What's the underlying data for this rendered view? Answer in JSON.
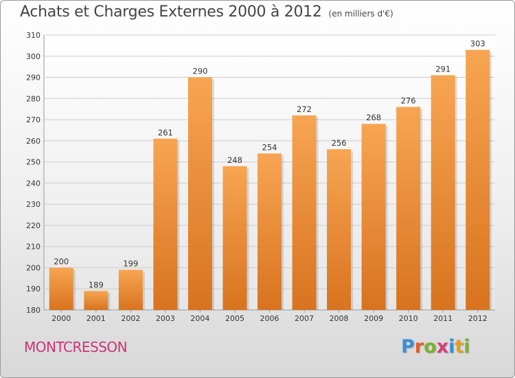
{
  "chart_data": {
    "type": "bar",
    "title": "Achats et Charges Externes 2000 à 2012",
    "subtitle": "(en milliers d'€)",
    "categories": [
      "2000",
      "2001",
      "2002",
      "2003",
      "2004",
      "2005",
      "2006",
      "2007",
      "2008",
      "2009",
      "2010",
      "2011",
      "2012"
    ],
    "values": [
      200,
      189,
      199,
      261,
      290,
      248,
      254,
      272,
      256,
      268,
      276,
      291,
      303
    ],
    "ylim": [
      180,
      310
    ],
    "yticks": [
      180,
      190,
      200,
      210,
      220,
      230,
      240,
      250,
      260,
      270,
      280,
      290,
      300,
      310
    ],
    "grid": true,
    "bar_color_top": "#f7a552",
    "bar_color_bottom": "#d8731f"
  },
  "footer": {
    "commune": "MONTCRESSON",
    "brand": "Proxiti",
    "brand_letter_colors": [
      "#3b8fd6",
      "#e0602b",
      "#7ab32e",
      "#d63c7a",
      "#3b8fd6",
      "#e0a020",
      "#7ab32e"
    ]
  }
}
